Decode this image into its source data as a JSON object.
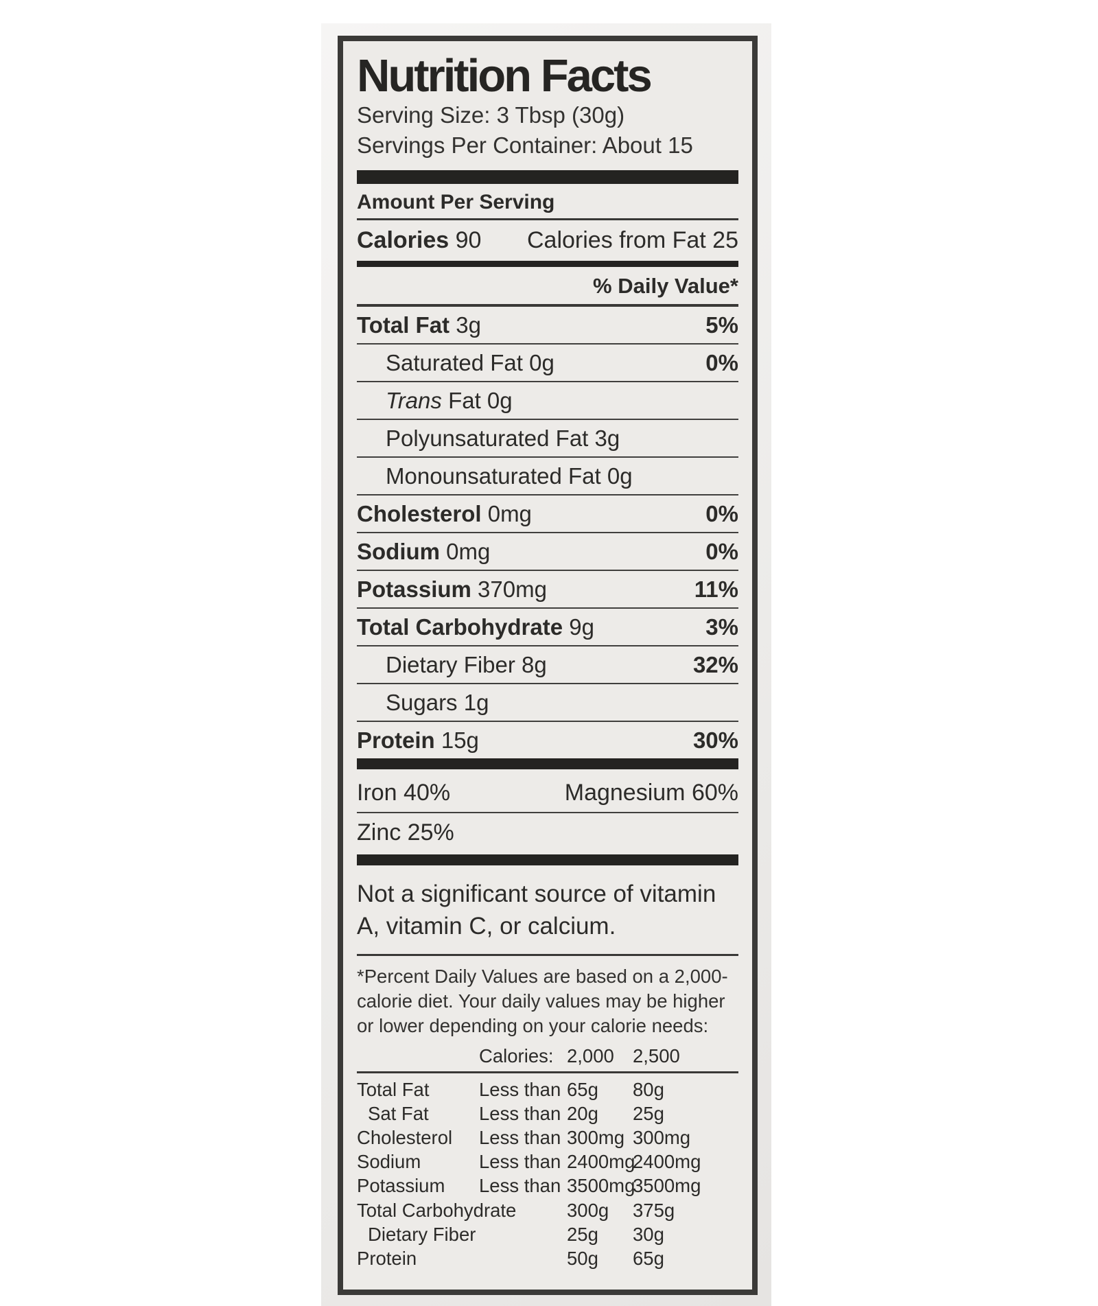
{
  "label": {
    "title": "Nutrition Facts",
    "serving_size": "Serving Size: 3 Tbsp (30g)",
    "servings_per_container": "Servings Per Container: About 15",
    "amount_per_serving": "Amount Per Serving",
    "calories_label": "Calories",
    "calories_value": "90",
    "calories_from_fat": "Calories from Fat 25",
    "daily_value_header": "% Daily Value*",
    "nutrients": [
      {
        "bold": "Total Fat",
        "rest": " 3g",
        "dv": "5%"
      },
      {
        "bold": "",
        "rest": "Saturated Fat 0g",
        "dv": "0%"
      },
      {
        "bold": "",
        "italic": "Trans",
        "rest": " Fat 0g",
        "dv": ""
      },
      {
        "bold": "",
        "rest": "Polyunsaturated Fat 3g",
        "dv": ""
      },
      {
        "bold": "",
        "rest": "Monounsaturated Fat 0g",
        "dv": ""
      },
      {
        "bold": "Cholesterol",
        "rest": " 0mg",
        "dv": "0%"
      },
      {
        "bold": "Sodium",
        "rest": " 0mg",
        "dv": "0%"
      },
      {
        "bold": "Potassium",
        "rest": " 370mg",
        "dv": "11%"
      },
      {
        "bold": "Total Carbohydrate",
        "rest": " 9g",
        "dv": "3%"
      },
      {
        "bold": "",
        "rest": "Dietary Fiber 8g",
        "dv": "32%"
      },
      {
        "bold": "",
        "rest": "Sugars 1g",
        "dv": ""
      },
      {
        "bold": "Protein",
        "rest": " 15g",
        "dv": "30%"
      }
    ],
    "minerals": {
      "iron": "Iron 40%",
      "magnesium": "Magnesium 60%",
      "zinc": "Zinc 25%"
    },
    "not_significant": "Not a significant source of vitamin A, vitamin C, or calcium.",
    "footnote": "*Percent Daily Values are based on a 2,000-calorie diet. Your daily values may be higher or lower depending on your calorie needs:",
    "dv_table": {
      "header": {
        "c2": "Calories:",
        "c3": "2,000",
        "c4": "2,500"
      },
      "rows": [
        [
          "Total Fat",
          "Less than",
          "65g",
          "80g"
        ],
        [
          "Sat Fat",
          "Less than",
          "20g",
          "25g"
        ],
        [
          "Cholesterol",
          "Less than",
          "300mg",
          "300mg"
        ],
        [
          "Sodium",
          "Less than",
          "2400mg",
          "2400mg"
        ],
        [
          "Potassium",
          "Less than",
          "3500mg",
          "3500mg"
        ],
        [
          "Total Carbohydrate",
          "",
          "300g",
          "375g"
        ],
        [
          "Dietary Fiber",
          "",
          "25g",
          "30g"
        ],
        [
          "Protein",
          "",
          "50g",
          "65g"
        ]
      ]
    }
  }
}
